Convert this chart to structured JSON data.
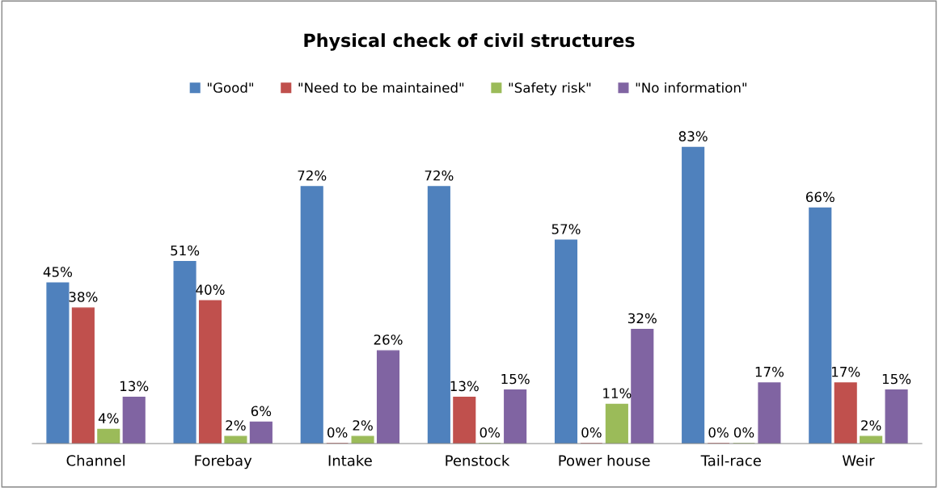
{
  "chart_data": {
    "type": "bar",
    "title": "Physical check of civil structures",
    "categories": [
      "Channel",
      "Forebay",
      "Intake",
      "Penstock",
      "Power house",
      "Tail-race",
      "Weir"
    ],
    "series": [
      {
        "name": "\"Good\"",
        "color": "#4f81bd",
        "values": [
          45,
          51,
          72,
          72,
          57,
          83,
          66
        ],
        "value_labels": [
          "45%",
          "51%",
          "72%",
          "72%",
          "57%",
          "83%",
          "66%"
        ]
      },
      {
        "name": "\"Need to be maintained\"",
        "color": "#c0504d",
        "values": [
          38,
          40,
          0,
          13,
          0,
          0,
          17
        ],
        "value_labels": [
          "38%",
          "40%",
          "0%",
          "13%",
          "0%",
          "0%",
          "17%"
        ]
      },
      {
        "name": "\"Safety risk\"",
        "color": "#9bbb59",
        "values": [
          4,
          2,
          2,
          0,
          11,
          0,
          2
        ],
        "value_labels": [
          "4%",
          "2%",
          "2%",
          "0%",
          "11%",
          "0%",
          "2%"
        ]
      },
      {
        "name": "\"No information\"",
        "color": "#8064a2",
        "values": [
          13,
          6,
          26,
          15,
          32,
          17,
          15
        ],
        "value_labels": [
          "13%",
          "6%",
          "26%",
          "15%",
          "32%",
          "17%",
          "15%"
        ]
      }
    ],
    "legend": "top"
  }
}
